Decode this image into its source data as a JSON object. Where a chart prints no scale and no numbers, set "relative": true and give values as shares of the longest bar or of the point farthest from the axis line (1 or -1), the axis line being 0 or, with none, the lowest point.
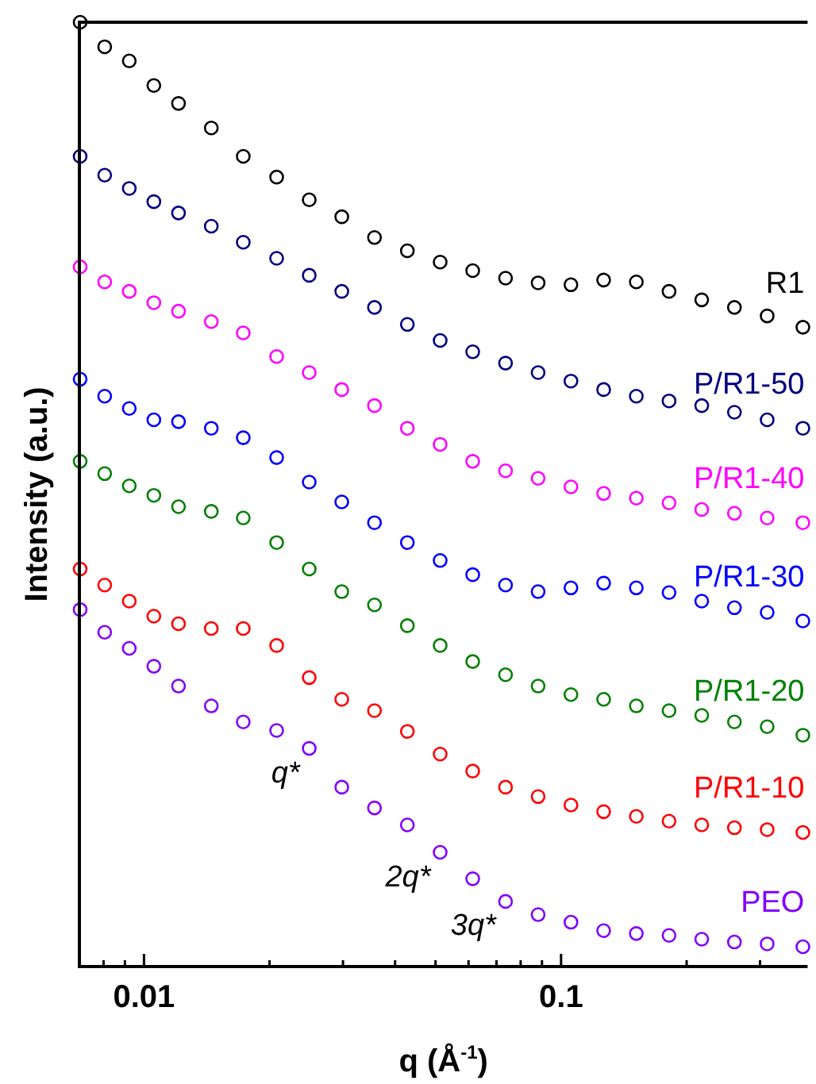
{
  "chart_data": {
    "type": "scatter",
    "relative": true,
    "marker": "circle",
    "xlabel": "q (Å$^{-1}$)",
    "ylabel": "Intensity (a.u.)",
    "log": "x",
    "xlim": [
      0.007,
      0.39
    ],
    "xticks": [
      {
        "value": 0.008,
        "label": null
      },
      {
        "value": 0.009,
        "label": null
      },
      0.01,
      {
        "value": 0.02,
        "label": null
      },
      {
        "value": 0.03,
        "label": null
      },
      {
        "value": 0.04,
        "label": null
      },
      {
        "value": 0.05,
        "label": null
      },
      {
        "value": 0.06,
        "label": null
      },
      {
        "value": 0.07,
        "label": null
      },
      {
        "value": 0.08,
        "label": null
      },
      {
        "value": 0.09,
        "label": null
      },
      0.1,
      {
        "value": 0.2,
        "label": null
      },
      {
        "value": 0.3,
        "label": null
      }
    ],
    "x": [
      0.00703,
      0.00805,
      0.00922,
      0.01056,
      0.0121,
      0.0145,
      0.0173,
      0.0208,
      0.0249,
      0.0298,
      0.0357,
      0.0428,
      0.0513,
      0.0614,
      0.0736,
      0.0881,
      0.1056,
      0.1265,
      0.1515,
      0.1815,
      0.2174,
      0.2604,
      0.312,
      0.38
    ],
    "series": [
      {
        "name": "R1",
        "color": "#000000",
        "values": [
          1.0,
          0.974,
          0.959,
          0.933,
          0.914,
          0.888,
          0.858,
          0.836,
          0.812,
          0.794,
          0.772,
          0.758,
          0.746,
          0.737,
          0.729,
          0.724,
          0.722,
          0.727,
          0.725,
          0.715,
          0.706,
          0.698,
          0.689,
          0.677
        ]
      },
      {
        "name": "P/R1-50",
        "color": "#000080",
        "values": [
          0.858,
          0.838,
          0.824,
          0.81,
          0.798,
          0.784,
          0.767,
          0.75,
          0.732,
          0.715,
          0.698,
          0.68,
          0.663,
          0.651,
          0.639,
          0.629,
          0.62,
          0.611,
          0.604,
          0.599,
          0.594,
          0.587,
          0.579,
          0.57
        ]
      },
      {
        "name": "P/R1-40",
        "color": "#ff00ff",
        "values": [
          0.741,
          0.725,
          0.715,
          0.703,
          0.694,
          0.683,
          0.671,
          0.646,
          0.629,
          0.611,
          0.594,
          0.57,
          0.553,
          0.535,
          0.525,
          0.517,
          0.508,
          0.501,
          0.496,
          0.491,
          0.484,
          0.48,
          0.475,
          0.47
        ]
      },
      {
        "name": "P/R1-30",
        "color": "#0000ff",
        "values": [
          0.622,
          0.604,
          0.591,
          0.579,
          0.577,
          0.57,
          0.56,
          0.539,
          0.513,
          0.492,
          0.47,
          0.449,
          0.43,
          0.415,
          0.404,
          0.397,
          0.401,
          0.406,
          0.401,
          0.396,
          0.387,
          0.38,
          0.375,
          0.366
        ]
      },
      {
        "name": "P/R1-20",
        "color": "#008000",
        "values": [
          0.535,
          0.522,
          0.509,
          0.499,
          0.487,
          0.482,
          0.475,
          0.449,
          0.421,
          0.397,
          0.383,
          0.361,
          0.34,
          0.323,
          0.309,
          0.297,
          0.288,
          0.283,
          0.276,
          0.271,
          0.266,
          0.259,
          0.254,
          0.245
        ]
      },
      {
        "name": "P/R1-10",
        "color": "#ff0000",
        "values": [
          0.421,
          0.404,
          0.387,
          0.371,
          0.363,
          0.358,
          0.358,
          0.34,
          0.306,
          0.283,
          0.271,
          0.249,
          0.225,
          0.207,
          0.19,
          0.18,
          0.171,
          0.164,
          0.159,
          0.154,
          0.15,
          0.147,
          0.145,
          0.142
        ]
      },
      {
        "name": "PEO",
        "color": "#8000ff",
        "values": [
          0.378,
          0.354,
          0.337,
          0.318,
          0.297,
          0.276,
          0.259,
          0.25,
          0.231,
          0.19,
          0.168,
          0.15,
          0.121,
          0.093,
          0.069,
          0.055,
          0.047,
          0.038,
          0.035,
          0.033,
          0.029,
          0.026,
          0.024,
          0.021
        ]
      }
    ],
    "annotations": [
      {
        "text": "q*",
        "x": 0.0249,
        "y": 0.231
      },
      {
        "text": "2q*",
        "x": 0.0513,
        "y": 0.121
      },
      {
        "text": "3q*",
        "x": 0.0736,
        "y": 0.069
      }
    ]
  }
}
